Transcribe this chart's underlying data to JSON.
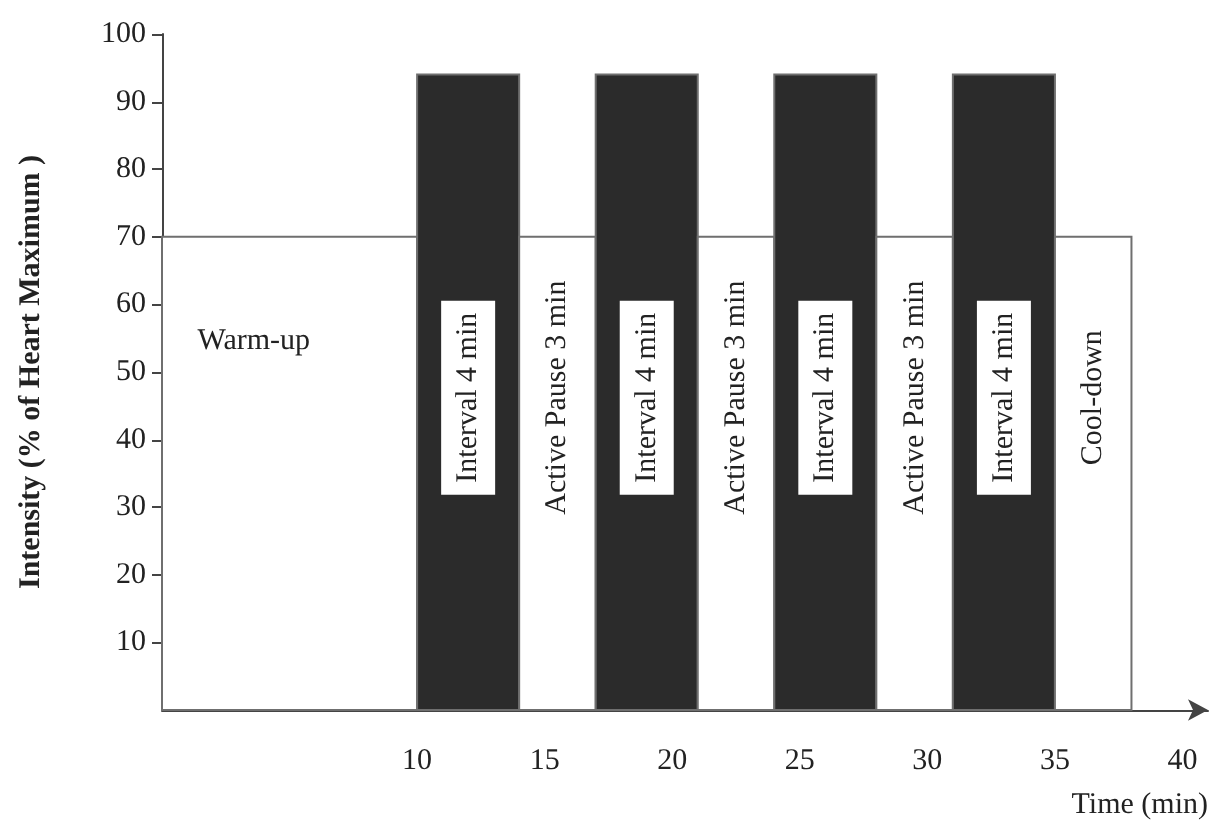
{
  "chart_data": {
    "type": "histogram",
    "xlabel": "Time (min)",
    "ylabel": "Intensity (% of Heart Maximum )",
    "bins": [
      0,
      10,
      14,
      17,
      21,
      24,
      28,
      31,
      35,
      38
    ],
    "values": [
      70,
      94,
      70,
      94,
      70,
      94,
      70,
      94,
      70
    ],
    "colors": [
      "#ffffff",
      "#2b2b2b",
      "#ffffff",
      "#2b2b2b",
      "#ffffff",
      "#2b2b2b",
      "#ffffff",
      "#2b2b2b",
      "#ffffff"
    ],
    "xlim": [
      0,
      41
    ],
    "xticks": [
      10,
      15,
      20,
      25,
      30,
      35,
      40
    ],
    "ylim": [
      0,
      100
    ],
    "yticks": [
      10,
      20,
      30,
      40,
      50,
      60,
      70,
      80,
      90,
      100
    ],
    "grid": false,
    "annotations": [
      "Warm-up",
      "Interval 4 min",
      "Active Pause 3 min",
      "Interval 4 min",
      "Active Pause 3 min",
      "Interval 4 min",
      "Active Pause 3 min",
      "Interval 4 min",
      "Cool-down"
    ]
  }
}
